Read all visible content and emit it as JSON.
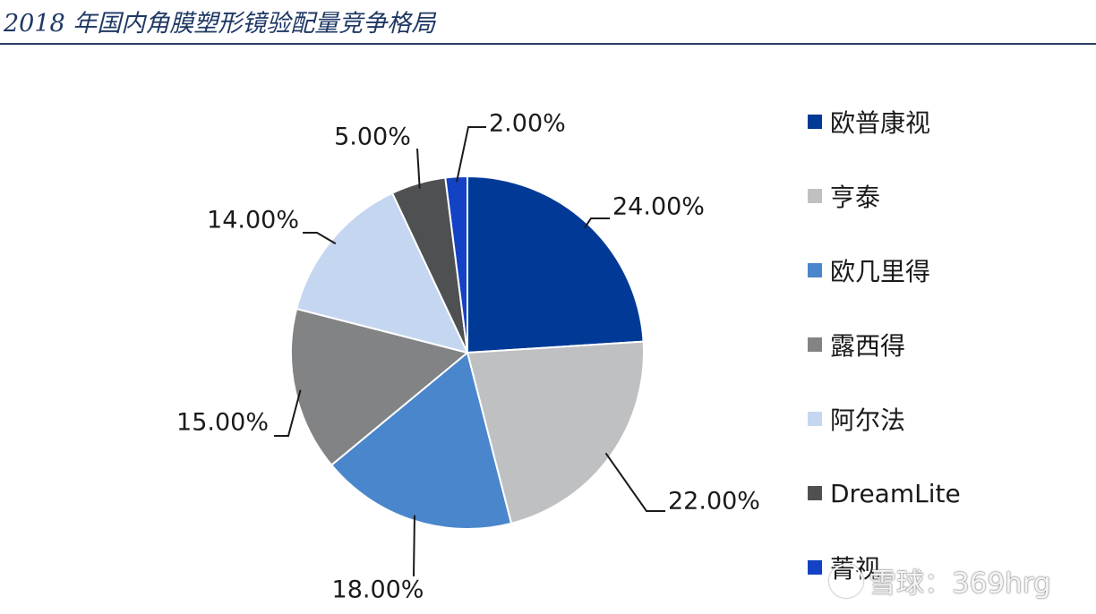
{
  "title": "2018 年国内角膜塑形镜验配量竞争格局",
  "watermark": {
    "text": "雪球：369hrg"
  },
  "chart_data": {
    "type": "pie",
    "legend_position": "right",
    "slices": [
      {
        "label": "欧普康视",
        "value": 24,
        "display": "24.00%",
        "color": "#003a96"
      },
      {
        "label": "亨泰",
        "value": 22,
        "display": "22.00%",
        "color": "#bfc0c2"
      },
      {
        "label": "欧几里得",
        "value": 18,
        "display": "18.00%",
        "color": "#4a86cc"
      },
      {
        "label": "露西得",
        "value": 15,
        "display": "15.00%",
        "color": "#828385"
      },
      {
        "label": "阿尔法",
        "value": 14,
        "display": "14.00%",
        "color": "#c4d6f0"
      },
      {
        "label": "DreamLite",
        "value": 5,
        "display": "5.00%",
        "color": "#4f5052"
      },
      {
        "label": "菁视",
        "value": 2,
        "display": "2.00%",
        "color": "#1342c4"
      }
    ]
  }
}
